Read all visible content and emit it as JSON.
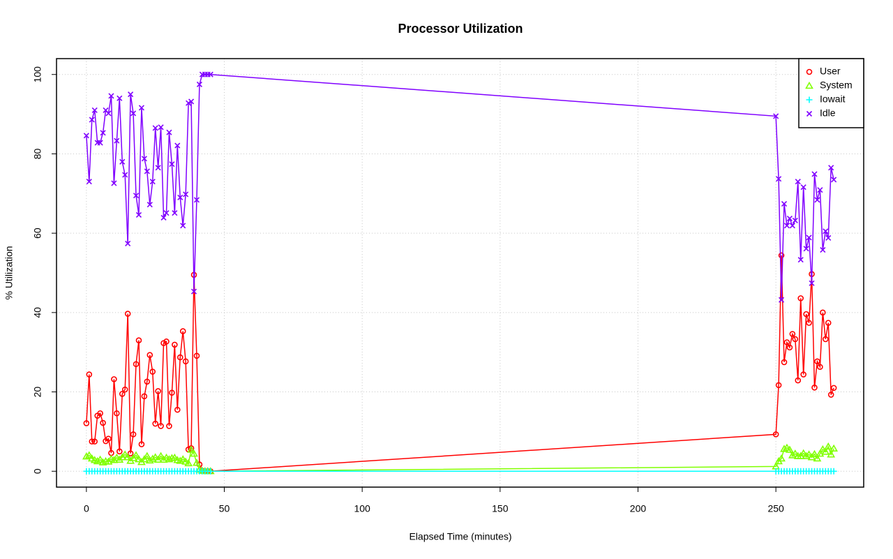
{
  "chart_data": {
    "type": "line",
    "title": "Processor Utilization",
    "xlabel": "Elapsed Time (minutes)",
    "ylabel": "% Utilization",
    "x": [
      0,
      1,
      2,
      3,
      4,
      5,
      6,
      7,
      8,
      9,
      10,
      11,
      12,
      13,
      14,
      15,
      16,
      17,
      18,
      19,
      20,
      21,
      22,
      23,
      24,
      25,
      26,
      27,
      28,
      29,
      30,
      31,
      32,
      33,
      34,
      35,
      36,
      37,
      38,
      39,
      40,
      41,
      42,
      43,
      44,
      45,
      250,
      251,
      252,
      253,
      254,
      255,
      256,
      257,
      258,
      259,
      260,
      261,
      262,
      263,
      264,
      265,
      266,
      267,
      268,
      269,
      270,
      271
    ],
    "series": [
      {
        "name": "User",
        "color": "#ff0000",
        "marker": "circle",
        "values": [
          12.1,
          24.4,
          7.5,
          7.5,
          14,
          14.6,
          12.2,
          7.6,
          8.2,
          4.6,
          23.2,
          14.6,
          5,
          19.5,
          20.6,
          39.7,
          4.5,
          9.3,
          27,
          33,
          6.8,
          18.9,
          22.6,
          29.3,
          25.1,
          12,
          20.2,
          11.4,
          32.3,
          32.7,
          11.4,
          19.8,
          31.9,
          15.5,
          28.7,
          35.3,
          27.7,
          5.5,
          5.8,
          49.5,
          29.1,
          1.7,
          0.1,
          0,
          0,
          0,
          9.3,
          21.7,
          54.4,
          27.5,
          32.5,
          31.2,
          34.6,
          33.3,
          22.9,
          43.6,
          24.4,
          39.6,
          37.4,
          49.7,
          21.1,
          27.7,
          26.3,
          40,
          33.3,
          37.4,
          19.3,
          21
        ]
      },
      {
        "name": "System",
        "color": "#80ff00",
        "marker": "triangle",
        "values": [
          3.7,
          4,
          3.2,
          2.8,
          2.5,
          2.9,
          2.2,
          2.5,
          2.4,
          3.1,
          2.8,
          3.4,
          2.9,
          3.5,
          4.2,
          3.5,
          2.6,
          3.3,
          4,
          3,
          2.3,
          3,
          3.8,
          2.7,
          3.1,
          3.5,
          2.9,
          3.8,
          2.9,
          3.4,
          3,
          3.3,
          3.4,
          2.8,
          2.6,
          3,
          2.4,
          2,
          5.4,
          4.4,
          2.1,
          0.4,
          0.1,
          0,
          0,
          0,
          1.2,
          2.5,
          3.2,
          5.6,
          5.9,
          5.4,
          4,
          4.4,
          3.8,
          3.8,
          4.5,
          3.8,
          4.2,
          3.5,
          4.3,
          3.2,
          4.4,
          5.5,
          4.9,
          6.2,
          4.2,
          5.7
        ]
      },
      {
        "name": "Iowait",
        "color": "#00ffff",
        "marker": "plus",
        "values": [
          0,
          0,
          0,
          0,
          0,
          0,
          0,
          0,
          0,
          0,
          0,
          0,
          0,
          0,
          0,
          0,
          0,
          0,
          0,
          0,
          0,
          0,
          0,
          0,
          0,
          0,
          0,
          0,
          0,
          0,
          0,
          0,
          0,
          0,
          0,
          0,
          0,
          0,
          0,
          0,
          0,
          0,
          0,
          0,
          0,
          0,
          0,
          0,
          0,
          0,
          0,
          0,
          0,
          0,
          0,
          0,
          0,
          0,
          0,
          0,
          0,
          0,
          0,
          0,
          0,
          0,
          0,
          0
        ]
      },
      {
        "name": "Idle",
        "color": "#8000ff",
        "marker": "cross",
        "values": [
          84.6,
          73,
          88.6,
          91,
          82.8,
          82.8,
          85.3,
          91,
          90.2,
          94.6,
          72.6,
          83.3,
          94,
          78,
          74.7,
          57.4,
          95,
          90.2,
          69.5,
          64.6,
          91.6,
          78.8,
          75.6,
          67.2,
          73,
          86.5,
          76.5,
          86.7,
          63.9,
          65.1,
          85.4,
          77.4,
          65.1,
          82.1,
          69,
          61.9,
          69.8,
          92.8,
          93.2,
          45.3,
          68.4,
          97.5,
          100,
          100,
          100,
          100,
          89.5,
          73.7,
          43.2,
          67.4,
          61.9,
          63.7,
          61.9,
          63.2,
          73,
          53.3,
          71.6,
          56.1,
          58.9,
          47.4,
          74.9,
          68.4,
          70.9,
          55.8,
          60.5,
          58.8,
          76.5,
          73.5
        ]
      }
    ],
    "xlim": [
      -10.84,
      281.84
    ],
    "ylim": [
      -4,
      104
    ],
    "xticks": [
      0,
      50,
      100,
      150,
      200,
      250
    ],
    "yticks": [
      0,
      20,
      40,
      60,
      80,
      100
    ],
    "grid": true,
    "legend": "topright"
  }
}
